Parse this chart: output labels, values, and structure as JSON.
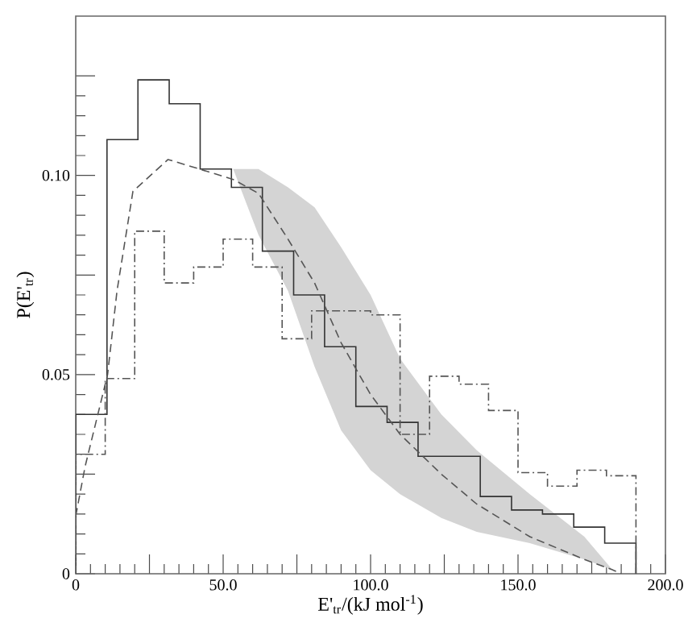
{
  "chart_data": {
    "type": "histogram",
    "xlabel": "E'$_{tr}$/(kJ mol$^{-1}$)",
    "ylabel": "P(E'$_{tr}$)",
    "xlim": [
      0,
      200
    ],
    "ylim": [
      0,
      0.14
    ],
    "xticks": [
      {
        "value": 0,
        "label": "0"
      },
      {
        "value": 25,
        "label": null
      },
      {
        "value": 50,
        "label": "50.0"
      },
      {
        "value": 75,
        "label": null
      },
      {
        "value": 100,
        "label": "100.0"
      },
      {
        "value": 125,
        "label": null
      },
      {
        "value": 150,
        "label": "150.0"
      },
      {
        "value": 175,
        "label": null
      },
      {
        "value": 200,
        "label": "200.0"
      }
    ],
    "yticks": [
      {
        "value": 0,
        "label": "0"
      },
      {
        "value": 0.025,
        "label": null
      },
      {
        "value": 0.05,
        "label": "0.05"
      },
      {
        "value": 0.075,
        "label": null
      },
      {
        "value": 0.1,
        "label": "0.10"
      },
      {
        "value": 0.125,
        "label": null
      }
    ],
    "grid": false,
    "series": [
      {
        "color": "#333333",
        "line_style": "solid",
        "bins": [
          0,
          10.6,
          21.1,
          31.7,
          42.2,
          52.8,
          63.3,
          73.9,
          84.4,
          95,
          105.6,
          116.1,
          126.7,
          137.2,
          147.8,
          158.3,
          168.9,
          179.4,
          190
        ],
        "values": [
          0.04,
          0.109,
          0.124,
          0.118,
          0.1016,
          0.097,
          0.081,
          0.07,
          0.057,
          0.042,
          0.038,
          0.0295,
          0.0295,
          0.0194,
          0.016,
          0.015,
          0.0117,
          0.0077
        ]
      },
      {
        "color": "#555555",
        "line_style": "dashdot",
        "bins": [
          0,
          10,
          20,
          30,
          40,
          50,
          60,
          70,
          80,
          90,
          100,
          110,
          120,
          130,
          140,
          150,
          160,
          170,
          180,
          190
        ],
        "values": [
          0.03,
          0.049,
          0.086,
          0.073,
          0.077,
          0.084,
          0.077,
          0.059,
          0.066,
          0.066,
          0.065,
          0.035,
          0.0496,
          0.0476,
          0.041,
          0.0254,
          0.022,
          0.026,
          0.0246
        ]
      },
      {
        "type": "line",
        "color": "#555555",
        "line_style": "dashed",
        "marker": "none",
        "x": [
          0,
          3.2,
          10.8,
          14,
          19.4,
          31.3,
          42,
          53.4,
          62,
          72,
          81,
          90,
          100,
          110,
          124,
          136,
          154,
          172.5,
          182,
          185
        ],
        "values": [
          0.0145,
          0.027,
          0.05,
          0.071,
          0.096,
          0.104,
          0.1016,
          0.099,
          0.0955,
          0.084,
          0.073,
          0.058,
          0.045,
          0.035,
          0.025,
          0.0175,
          0.0093,
          0.0036,
          0.001,
          0
        ],
        "lower": [
          null,
          null,
          null,
          null,
          null,
          null,
          null,
          0.1016,
          0.085,
          0.071,
          0.052,
          0.036,
          0.026,
          0.02,
          0.014,
          0.0105,
          0.0077,
          0.0036,
          0.001,
          null
        ],
        "upper": [
          null,
          null,
          null,
          null,
          null,
          null,
          null,
          0.1016,
          0.1016,
          0.097,
          0.092,
          0.082,
          0.07,
          0.054,
          0.04,
          0.031,
          0.02,
          0.0093,
          0.001,
          null
        ]
      }
    ]
  }
}
